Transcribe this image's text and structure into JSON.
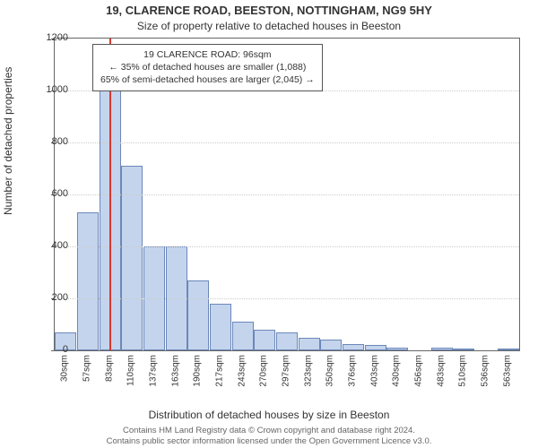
{
  "title_main": "19, CLARENCE ROAD, BEESTON, NOTTINGHAM, NG9 5HY",
  "title_sub": "Size of property relative to detached houses in Beeston",
  "ylabel": "Number of detached properties",
  "xlabel": "Distribution of detached houses by size in Beeston",
  "footer_line1": "Contains HM Land Registry data © Crown copyright and database right 2024.",
  "footer_line2": "Contains public sector information licensed under the Open Government Licence v3.0.",
  "chart": {
    "type": "histogram",
    "background_color": "#ffffff",
    "border_color": "#666666",
    "grid_color": "#cccccc",
    "bar_fill": "#c4d4ed",
    "bar_border": "#6b88b8",
    "marker_color": "#d43a2f",
    "marker_x_value": 96,
    "ylim": [
      0,
      1200
    ],
    "ytick_step": 200,
    "x_start": 30,
    "x_step": 26.5,
    "x_categories": [
      "30sqm",
      "57sqm",
      "83sqm",
      "110sqm",
      "137sqm",
      "163sqm",
      "190sqm",
      "217sqm",
      "243sqm",
      "270sqm",
      "297sqm",
      "323sqm",
      "350sqm",
      "376sqm",
      "403sqm",
      "430sqm",
      "456sqm",
      "483sqm",
      "510sqm",
      "536sqm",
      "563sqm"
    ],
    "values": [
      70,
      530,
      1070,
      710,
      400,
      400,
      270,
      180,
      110,
      80,
      70,
      50,
      40,
      25,
      20,
      12,
      0,
      10,
      8,
      0,
      6
    ],
    "label_fontsize": 12,
    "tick_fontsize": 11,
    "xtick_fontsize": 10,
    "anno_fontsize": 10.5
  },
  "annotation": {
    "line1": "19 CLARENCE ROAD: 96sqm",
    "line2": "← 35% of detached houses are smaller (1,088)",
    "line3": "65% of semi-detached houses are larger (2,045) →"
  }
}
